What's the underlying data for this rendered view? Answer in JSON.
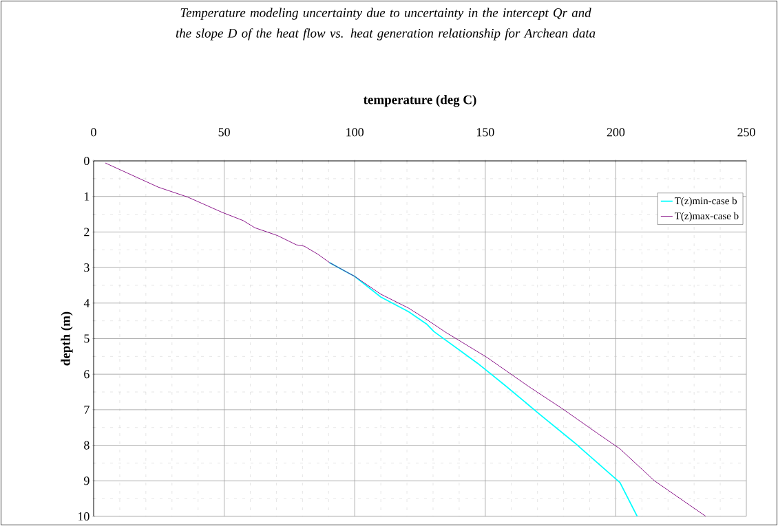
{
  "chart_data": {
    "type": "line",
    "title": "Temperature modeling uncertainty due to uncertainty in the intercept Qr and the slope D of the heat flow vs. heat generation relationship for Archean data",
    "xlabel": "temperature (deg C)",
    "ylabel": "depth (m)",
    "series": [
      {
        "name": "T(z)min-case b",
        "color": "#00ffff",
        "x": [
          90.3,
          100,
          110,
          120.6,
          127.7,
          130.3,
          147,
          157.5,
          170.7,
          183.9,
          201.6,
          208.2
        ],
        "values": [
          2.86,
          3.25,
          3.83,
          4.24,
          4.6,
          4.8,
          5.69,
          6.31,
          7.12,
          7.91,
          9.05,
          10
        ]
      },
      {
        "name": "T(z)max-case b",
        "color": "#800080",
        "x": [
          4.5,
          24.8,
          36.1,
          49.3,
          57.3,
          61.7,
          70.4,
          77.6,
          80.7,
          86,
          90.3,
          100,
          110,
          120.6,
          127.7,
          134.8,
          150.7,
          166.5,
          179.7,
          192.9,
          201.6,
          214.8,
          234.5
        ],
        "values": [
          0.06,
          0.74,
          1.02,
          1.45,
          1.68,
          1.88,
          2.1,
          2.36,
          2.4,
          2.63,
          2.86,
          3.25,
          3.75,
          4.14,
          4.47,
          4.82,
          5.53,
          6.34,
          6.98,
          7.66,
          8.1,
          9,
          10
        ]
      }
    ],
    "xlim": [
      0,
      250
    ],
    "ylim": [
      10,
      0
    ],
    "xticks": [
      0,
      50,
      100,
      150,
      200,
      250
    ],
    "yticks": [
      0,
      1,
      2,
      3,
      4,
      5,
      6,
      7,
      8,
      9,
      10
    ],
    "grid": true,
    "legend": "right",
    "marker": "none",
    "line_style": "solid"
  }
}
